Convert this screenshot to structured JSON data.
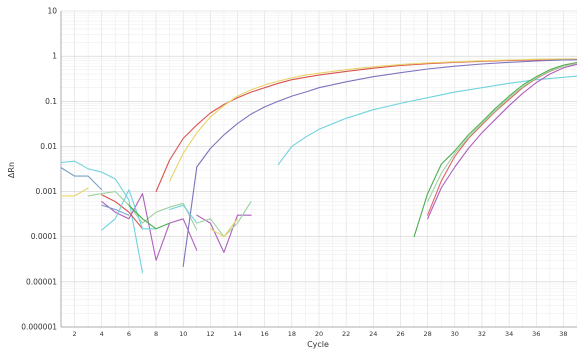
{
  "chart_data": {
    "type": "line",
    "xlabel": "Cycle",
    "ylabel": "ΔRn",
    "yscale": "log",
    "xlim": [
      1,
      39
    ],
    "ylim": [
      1e-06,
      10
    ],
    "grid": true,
    "x_ticks": [
      "2",
      "4",
      "6",
      "8",
      "10",
      "12",
      "14",
      "16",
      "18",
      "20",
      "22",
      "24",
      "26",
      "28",
      "30",
      "32",
      "34",
      "36",
      "38"
    ],
    "y_ticks": [
      "10",
      "1",
      "0.1",
      "0.01",
      "0.001",
      "0.0001",
      "0.00001",
      "0.000001"
    ],
    "series": [
      {
        "color": "#d9534f",
        "x": [
          8,
          9,
          10,
          11,
          12,
          13,
          14,
          15,
          16,
          17,
          18,
          19,
          20,
          22,
          24,
          26,
          28,
          30,
          32,
          34,
          36,
          38,
          39
        ],
        "y": [
          0.001,
          0.005,
          0.015,
          0.03,
          0.055,
          0.085,
          0.12,
          0.16,
          0.2,
          0.25,
          0.3,
          0.34,
          0.38,
          0.46,
          0.54,
          0.62,
          0.68,
          0.73,
          0.77,
          0.8,
          0.82,
          0.84,
          0.85
        ]
      },
      {
        "color": "#e8d36a",
        "x": [
          9,
          10,
          11,
          12,
          13,
          14,
          15,
          16,
          17,
          18,
          19,
          20,
          22,
          24,
          26,
          28,
          30,
          32,
          34,
          36,
          38,
          39
        ],
        "y": [
          0.0017,
          0.007,
          0.02,
          0.045,
          0.08,
          0.13,
          0.18,
          0.23,
          0.28,
          0.33,
          0.38,
          0.42,
          0.5,
          0.58,
          0.65,
          0.71,
          0.75,
          0.79,
          0.82,
          0.85,
          0.86,
          0.87
        ]
      },
      {
        "color": "#7d74bf",
        "x": [
          11,
          12,
          13,
          14,
          15,
          16,
          17,
          18,
          19,
          20,
          22,
          24,
          26,
          28,
          30,
          32,
          34,
          36,
          38,
          39
        ],
        "y": [
          0.0035,
          0.009,
          0.018,
          0.032,
          0.052,
          0.075,
          0.1,
          0.13,
          0.16,
          0.2,
          0.27,
          0.35,
          0.43,
          0.52,
          0.6,
          0.67,
          0.73,
          0.78,
          0.82,
          0.83
        ]
      },
      {
        "color": "#6fd3df",
        "x": [
          17,
          18,
          19,
          20,
          22,
          24,
          26,
          28,
          30,
          32,
          34,
          36,
          38,
          39
        ],
        "y": [
          0.004,
          0.01,
          0.016,
          0.024,
          0.042,
          0.065,
          0.09,
          0.12,
          0.16,
          0.2,
          0.25,
          0.3,
          0.34,
          0.36
        ]
      },
      {
        "color": "#4caf50",
        "x": [
          27,
          28,
          29,
          30,
          31,
          32,
          33,
          34,
          35,
          36,
          37,
          38,
          39
        ],
        "y": [
          0.0001,
          0.0009,
          0.004,
          0.008,
          0.018,
          0.035,
          0.07,
          0.13,
          0.23,
          0.35,
          0.5,
          0.63,
          0.72
        ]
      },
      {
        "color": "#e06666",
        "x": [
          28,
          29,
          30,
          31,
          32,
          33,
          34,
          35,
          36,
          37,
          38,
          39
        ],
        "y": [
          0.0003,
          0.0017,
          0.006,
          0.015,
          0.03,
          0.06,
          0.11,
          0.2,
          0.32,
          0.46,
          0.6,
          0.7
        ]
      },
      {
        "color": "#9fd3a0",
        "x": [
          28,
          29,
          30,
          31,
          32,
          33,
          34,
          35,
          36,
          37,
          38,
          39
        ],
        "y": [
          0.0006,
          0.0025,
          0.007,
          0.016,
          0.032,
          0.063,
          0.12,
          0.21,
          0.33,
          0.47,
          0.6,
          0.69
        ]
      },
      {
        "color": "#b05fc0",
        "x": [
          28,
          29,
          30,
          31,
          32,
          33,
          34,
          35,
          36,
          37,
          38,
          39
        ],
        "y": [
          0.00025,
          0.0012,
          0.0035,
          0.009,
          0.02,
          0.04,
          0.08,
          0.15,
          0.26,
          0.4,
          0.55,
          0.66
        ]
      },
      {
        "color": "#7aa0c7",
        "x": [
          1,
          2,
          3,
          4
        ],
        "y": [
          0.0034,
          0.0022,
          0.0022,
          0.0011
        ]
      },
      {
        "color": "#6fd3df",
        "x": [
          1,
          2,
          3,
          4,
          5,
          6,
          7
        ],
        "y": [
          0.0044,
          0.0047,
          0.0032,
          0.0027,
          0.0019,
          0.00065,
          1.6e-05
        ]
      },
      {
        "color": "#e8d36a",
        "x": [
          1,
          2,
          3
        ],
        "y": [
          0.0008,
          0.0008,
          0.0012
        ]
      },
      {
        "color": "#9fd3a0",
        "x": [
          3,
          4,
          5,
          6,
          7,
          8,
          9,
          10,
          11
        ],
        "y": [
          0.0008,
          0.0009,
          0.001,
          0.0005,
          0.0002,
          0.00035,
          0.00045,
          0.00055,
          0.00014
        ]
      },
      {
        "color": "#b05fc0",
        "x": [
          4,
          5,
          6,
          7,
          8,
          9,
          10,
          11
        ],
        "y": [
          0.0006,
          0.00035,
          0.00025,
          0.0009,
          3e-05,
          0.0002,
          0.00025,
          5e-05
        ]
      },
      {
        "color": "#d9534f",
        "x": [
          4,
          5,
          6,
          7
        ],
        "y": [
          0.00085,
          0.0006,
          0.00035,
          0.00015
        ]
      },
      {
        "color": "#7aa0c7",
        "x": [
          4,
          5,
          6
        ],
        "y": [
          0.0005,
          0.0004,
          0.0003
        ]
      },
      {
        "color": "#6fd3df",
        "x": [
          4,
          5,
          6,
          7,
          8
        ],
        "y": [
          0.00014,
          0.00025,
          0.0011,
          0.00015,
          0.00015
        ]
      },
      {
        "color": "#4caf50",
        "x": [
          6,
          7,
          8,
          9
        ],
        "y": [
          0.0005,
          0.00025,
          0.00015,
          0.0002
        ]
      },
      {
        "color": "#7d74bf",
        "x": [
          10,
          11
        ],
        "y": [
          2.2e-05,
          0.0035
        ]
      },
      {
        "color": "#b05fc0",
        "x": [
          11,
          12,
          13,
          14,
          15
        ],
        "y": [
          0.0003,
          0.0002,
          4.5e-05,
          0.0003,
          0.0003
        ]
      },
      {
        "color": "#6fd3df",
        "x": [
          9,
          10,
          11
        ],
        "y": [
          0.0004,
          0.0005,
          0.0002
        ]
      },
      {
        "color": "#9fd3a0",
        "x": [
          11,
          12,
          13,
          14,
          15
        ],
        "y": [
          0.0002,
          0.00025,
          0.0001,
          0.0002,
          0.0006
        ]
      },
      {
        "color": "#e8d36a",
        "x": [
          12,
          13,
          14
        ],
        "y": [
          0.00015,
          0.0001,
          0.00025
        ]
      }
    ]
  }
}
